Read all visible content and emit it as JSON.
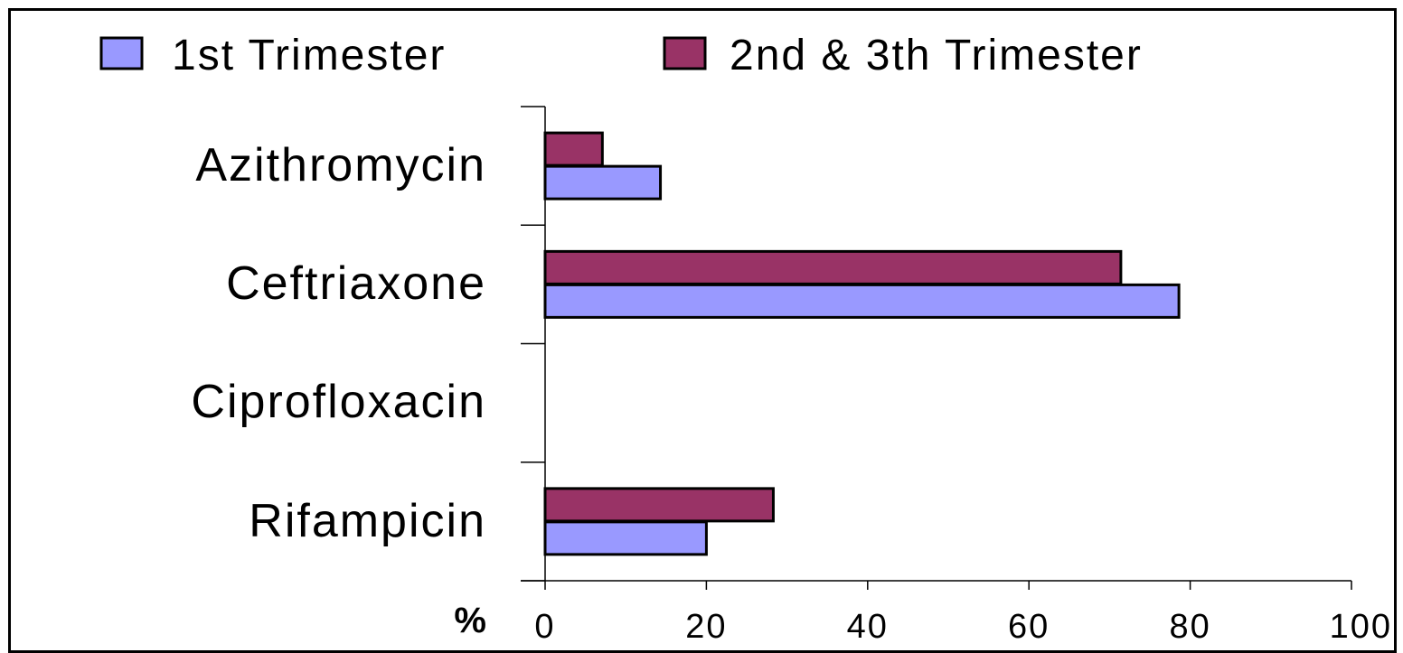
{
  "chart_data": {
    "type": "bar",
    "orientation": "horizontal",
    "categories": [
      "Azithromycin",
      "Ceftriaxone",
      "Ciprofloxacin",
      "Rifampicin"
    ],
    "series": [
      {
        "name": "1st Trimester",
        "color": "#9999ff",
        "values": [
          14.3,
          78.6,
          0,
          20
        ]
      },
      {
        "name": "2nd & 3th Trimester",
        "color": "#993366",
        "values": [
          7.1,
          71.4,
          0,
          28.3
        ]
      }
    ],
    "xlabel": "%",
    "xlim": [
      0,
      100
    ],
    "xticks": [
      "0",
      "20",
      "40",
      "60",
      "80",
      "100"
    ],
    "legend_position": "top",
    "grid": false
  }
}
